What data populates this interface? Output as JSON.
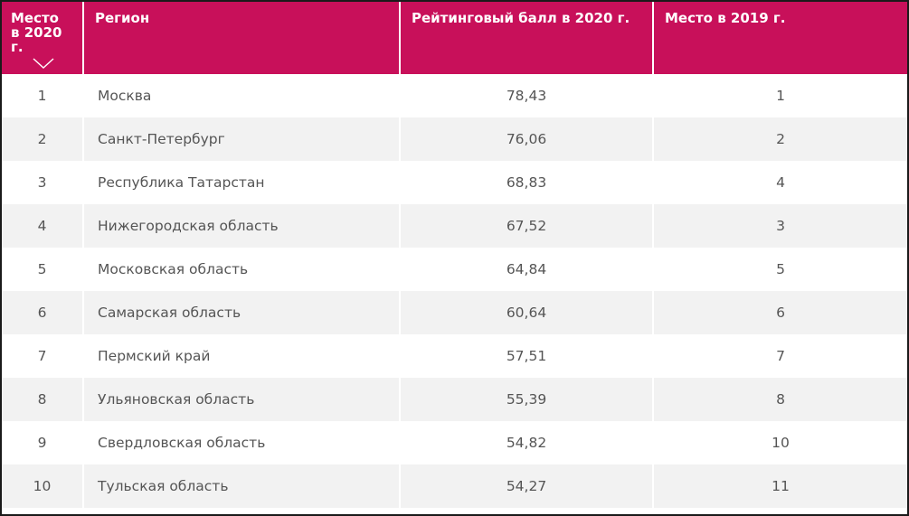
{
  "colors": {
    "header_bg": "#c8105a",
    "header_text": "#ffffff",
    "row_alt_bg": "#f2f2f2",
    "cell_text": "#555555"
  },
  "table": {
    "headers": {
      "rank_line1": "Место",
      "rank_line2": "в 2020 г.",
      "region": "Регион",
      "score": "Рейтинговый балл в 2020 г.",
      "prev_rank": "Место в 2019 г."
    },
    "sort_icon": "chevron-down-icon",
    "rows": [
      {
        "rank": "1",
        "region": "Москва",
        "score": "78,43",
        "prev": "1"
      },
      {
        "rank": "2",
        "region": "Санкт-Петербург",
        "score": "76,06",
        "prev": "2"
      },
      {
        "rank": "3",
        "region": "Республика Татарстан",
        "score": "68,83",
        "prev": "4"
      },
      {
        "rank": "4",
        "region": "Нижегородская область",
        "score": "67,52",
        "prev": "3"
      },
      {
        "rank": "5",
        "region": "Московская область",
        "score": "64,84",
        "prev": "5"
      },
      {
        "rank": "6",
        "region": "Самарская область",
        "score": "60,64",
        "prev": "6"
      },
      {
        "rank": "7",
        "region": "Пермский край",
        "score": "57,51",
        "prev": "7"
      },
      {
        "rank": "8",
        "region": "Ульяновская область",
        "score": "55,39",
        "prev": "8"
      },
      {
        "rank": "9",
        "region": "Свердловская область",
        "score": "54,82",
        "prev": "10"
      },
      {
        "rank": "10",
        "region": "Тульская область",
        "score": "54,27",
        "prev": "11"
      }
    ]
  }
}
